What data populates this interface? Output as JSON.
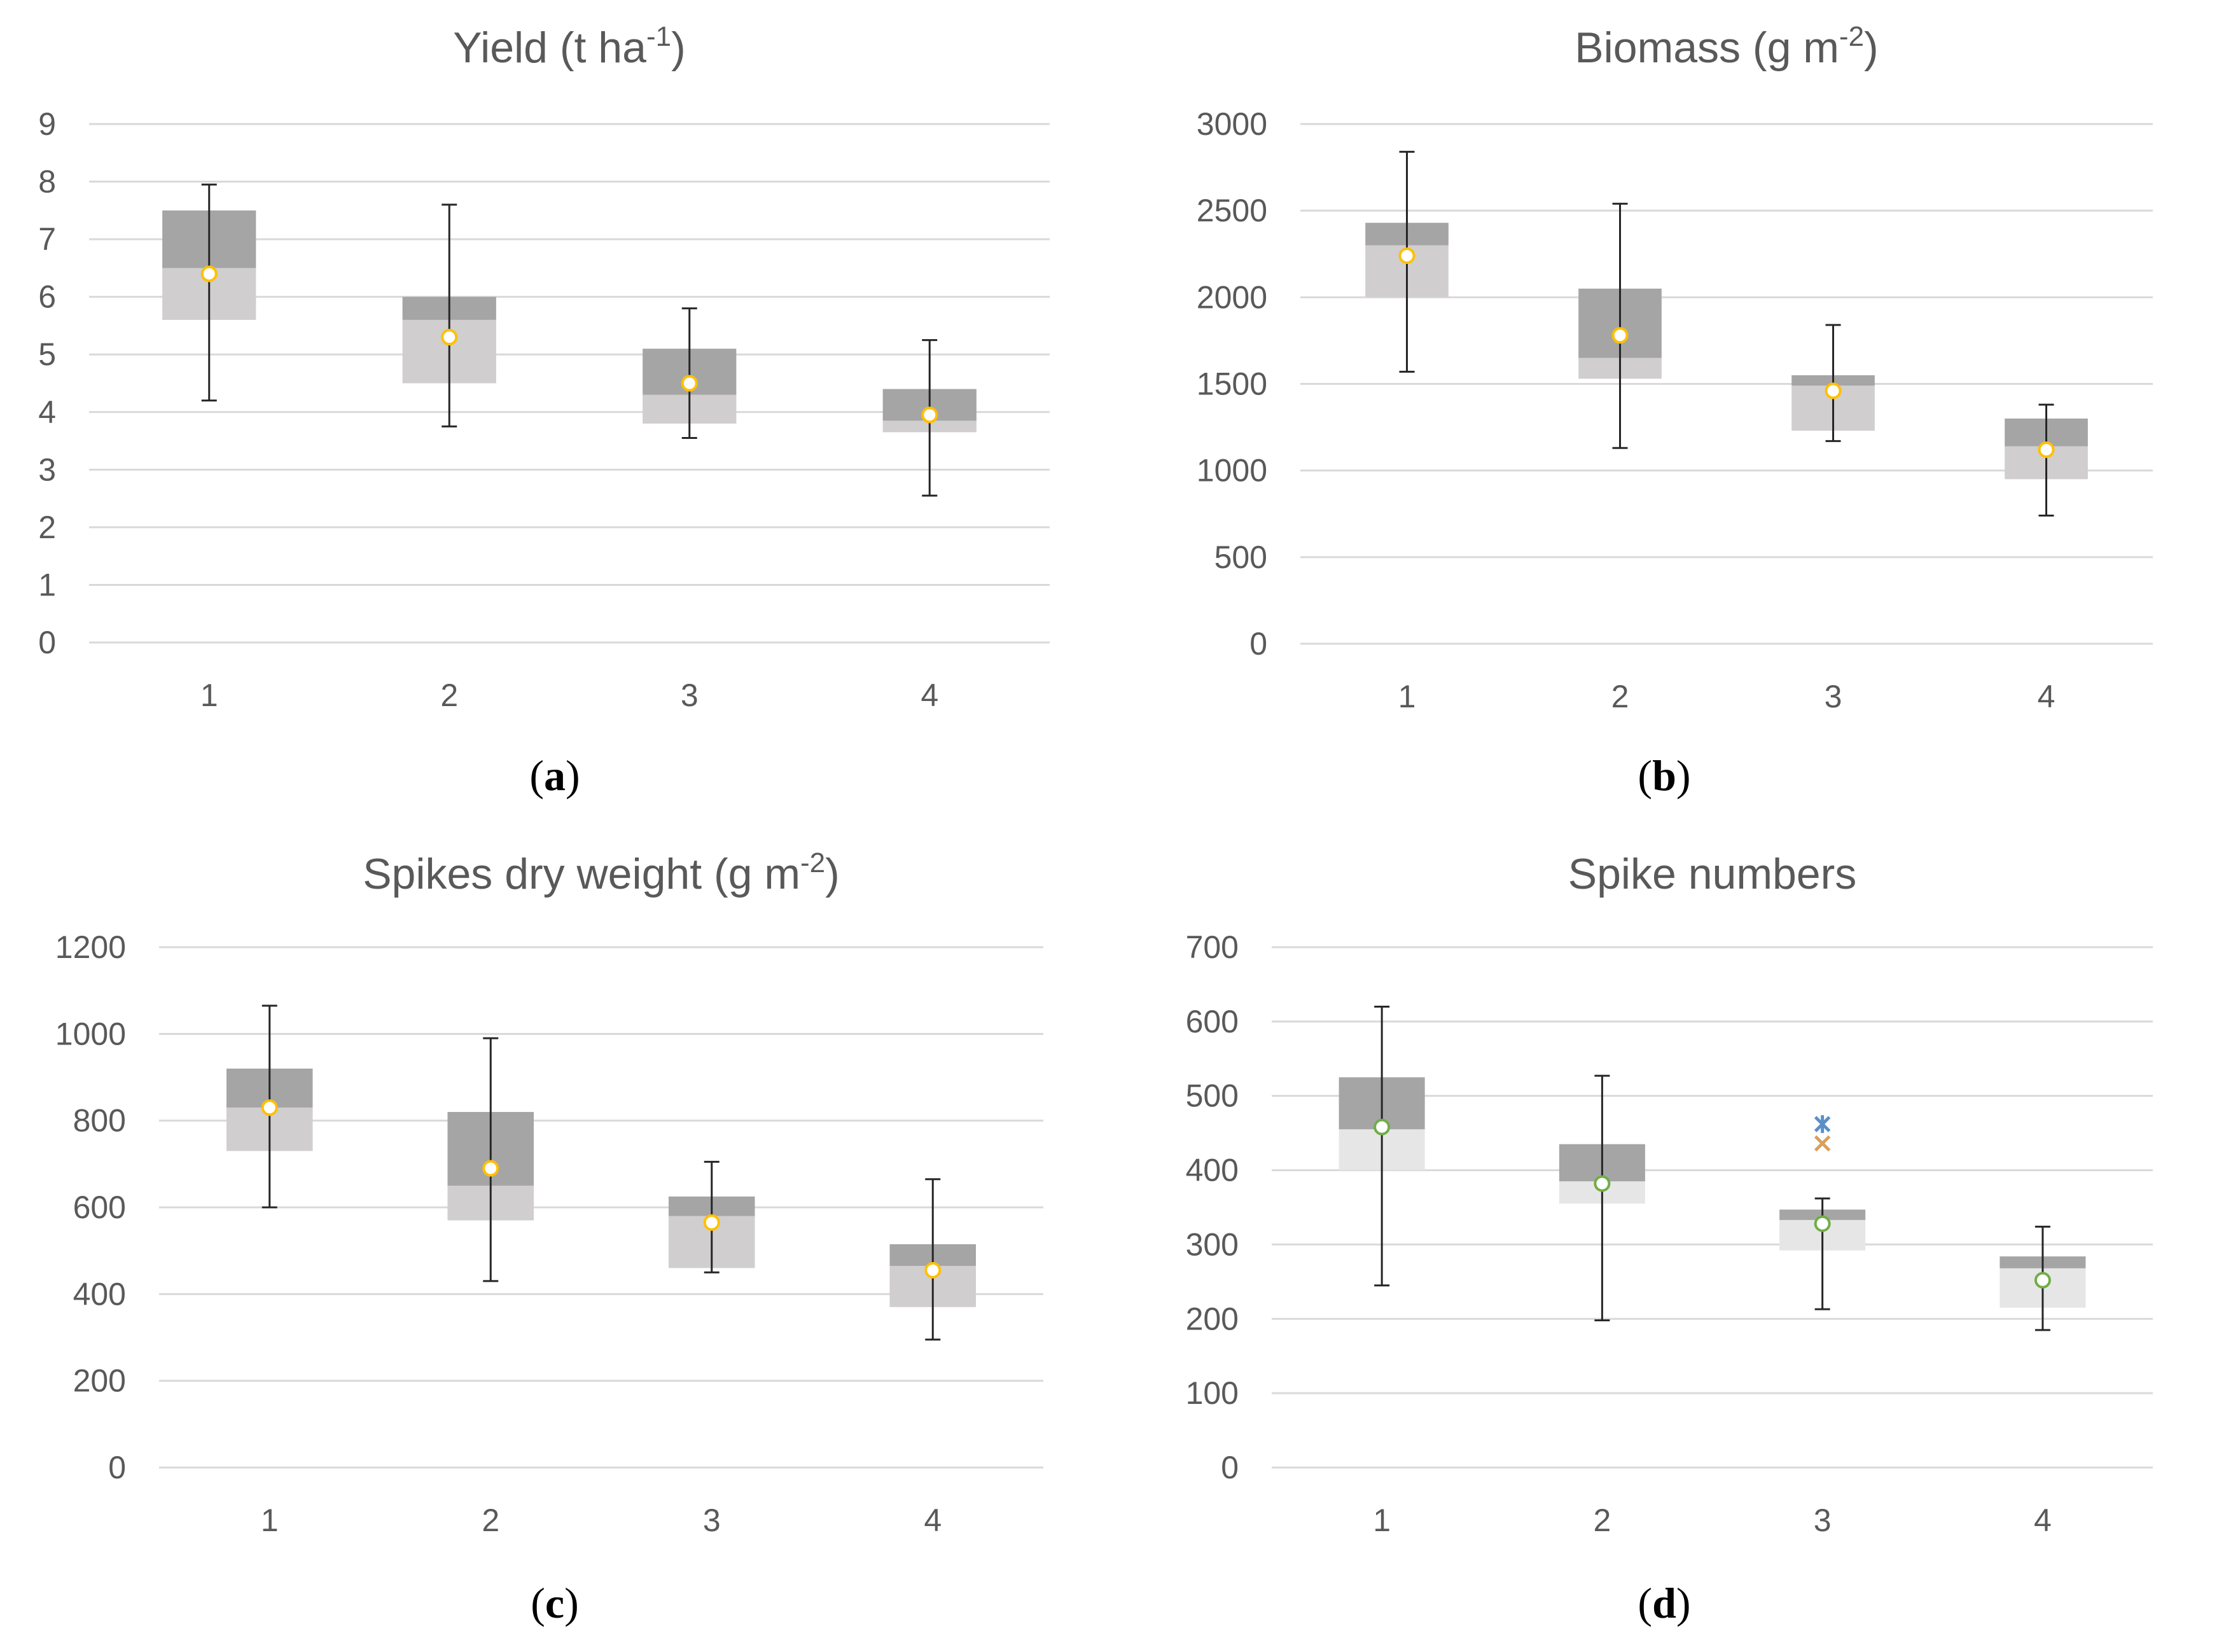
{
  "chart_data": [
    {
      "id": "a",
      "type": "box",
      "title": "Yield (t ha-1)",
      "title_base": "Yield (t ha",
      "title_sup": "-1",
      "title_end": ")",
      "panel_label": "a",
      "categories": [
        "1",
        "2",
        "3",
        "4"
      ],
      "ylim": [
        0,
        9
      ],
      "yticks": [
        0,
        1,
        2,
        3,
        4,
        5,
        6,
        7,
        8,
        9
      ],
      "grid": true,
      "boxes": [
        {
          "category": "1",
          "min": 4.2,
          "q1": 5.6,
          "median": 6.5,
          "q3": 7.5,
          "max": 7.95,
          "mean": 6.4
        },
        {
          "category": "2",
          "min": 3.75,
          "q1": 4.5,
          "median": 5.6,
          "q3": 6.0,
          "max": 7.6,
          "mean": 5.3
        },
        {
          "category": "3",
          "min": 3.55,
          "q1": 3.8,
          "median": 4.3,
          "q3": 5.1,
          "max": 5.8,
          "mean": 4.5
        },
        {
          "category": "4",
          "min": 2.55,
          "q1": 3.65,
          "median": 3.85,
          "q3": 4.4,
          "max": 5.25,
          "mean": 3.95
        }
      ],
      "outliers": []
    },
    {
      "id": "b",
      "type": "box",
      "title": "Biomass (g m-2)",
      "title_base": "Biomass (g m",
      "title_sup": "-2",
      "title_end": ")",
      "panel_label": "b",
      "categories": [
        "1",
        "2",
        "3",
        "4"
      ],
      "ylim": [
        0,
        3000
      ],
      "yticks": [
        0,
        500,
        1000,
        1500,
        2000,
        2500,
        3000
      ],
      "grid": true,
      "boxes": [
        {
          "category": "1",
          "min": 1570,
          "q1": 2000,
          "median": 2300,
          "q3": 2430,
          "max": 2840,
          "mean": 2240
        },
        {
          "category": "2",
          "min": 1130,
          "q1": 1530,
          "median": 1650,
          "q3": 2050,
          "max": 2540,
          "mean": 1780
        },
        {
          "category": "3",
          "min": 1170,
          "q1": 1230,
          "median": 1490,
          "q3": 1550,
          "max": 1840,
          "mean": 1460
        },
        {
          "category": "4",
          "min": 740,
          "q1": 950,
          "median": 1140,
          "q3": 1300,
          "max": 1380,
          "mean": 1120
        }
      ],
      "outliers": []
    },
    {
      "id": "c",
      "type": "box",
      "title": "Spikes dry weight (g m-2)",
      "title_base": "Spikes dry weight (g m",
      "title_sup": "-2",
      "title_end": ")",
      "panel_label": "c",
      "categories": [
        "1",
        "2",
        "3",
        "4"
      ],
      "ylim": [
        0,
        1200
      ],
      "yticks": [
        0,
        200,
        400,
        600,
        800,
        1000,
        1200
      ],
      "grid": true,
      "boxes": [
        {
          "category": "1",
          "min": 600,
          "q1": 730,
          "median": 830,
          "q3": 920,
          "max": 1065,
          "mean": 830
        },
        {
          "category": "2",
          "min": 430,
          "q1": 570,
          "median": 650,
          "q3": 820,
          "max": 990,
          "mean": 690
        },
        {
          "category": "3",
          "min": 450,
          "q1": 460,
          "median": 580,
          "q3": 625,
          "max": 705,
          "mean": 565
        },
        {
          "category": "4",
          "min": 295,
          "q1": 370,
          "median": 465,
          "q3": 515,
          "max": 665,
          "mean": 455
        }
      ],
      "outliers": []
    },
    {
      "id": "d",
      "type": "box",
      "title": "Spike numbers",
      "title_base": "Spike numbers",
      "title_sup": "",
      "title_end": "",
      "panel_label": "d",
      "categories": [
        "1",
        "2",
        "3",
        "4"
      ],
      "ylim": [
        0,
        700
      ],
      "yticks": [
        0,
        100,
        200,
        300,
        400,
        500,
        600,
        700
      ],
      "grid": true,
      "boxes": [
        {
          "category": "1",
          "min": 245,
          "q1": 400,
          "median": 455,
          "q3": 525,
          "max": 620,
          "mean": 458
        },
        {
          "category": "2",
          "min": 198,
          "q1": 355,
          "median": 385,
          "q3": 435,
          "max": 527,
          "mean": 382
        },
        {
          "category": "3",
          "min": 213,
          "q1": 292,
          "median": 333,
          "q3": 347,
          "max": 362,
          "mean": 328
        },
        {
          "category": "4",
          "min": 185,
          "q1": 215,
          "median": 268,
          "q3": 284,
          "max": 324,
          "mean": 252
        }
      ],
      "outliers": [
        {
          "category": "3",
          "value": 462,
          "marker": "star",
          "color": "#5b8fc7"
        },
        {
          "category": "3",
          "value": 436,
          "marker": "x",
          "color": "#d9a05b"
        }
      ]
    }
  ],
  "colors": {
    "upper_box": "#a5a5a5",
    "lower_box_abc": "#d0cece",
    "lower_box_d": "#e7e6e6",
    "grid": "#d9d9d9",
    "whisker": "#262626",
    "axis_text": "#595959",
    "mean_marker_stroke": "#ffc000",
    "mean_marker_stroke_d": "#70ad47",
    "mean_marker_fill": "#ffffff"
  }
}
